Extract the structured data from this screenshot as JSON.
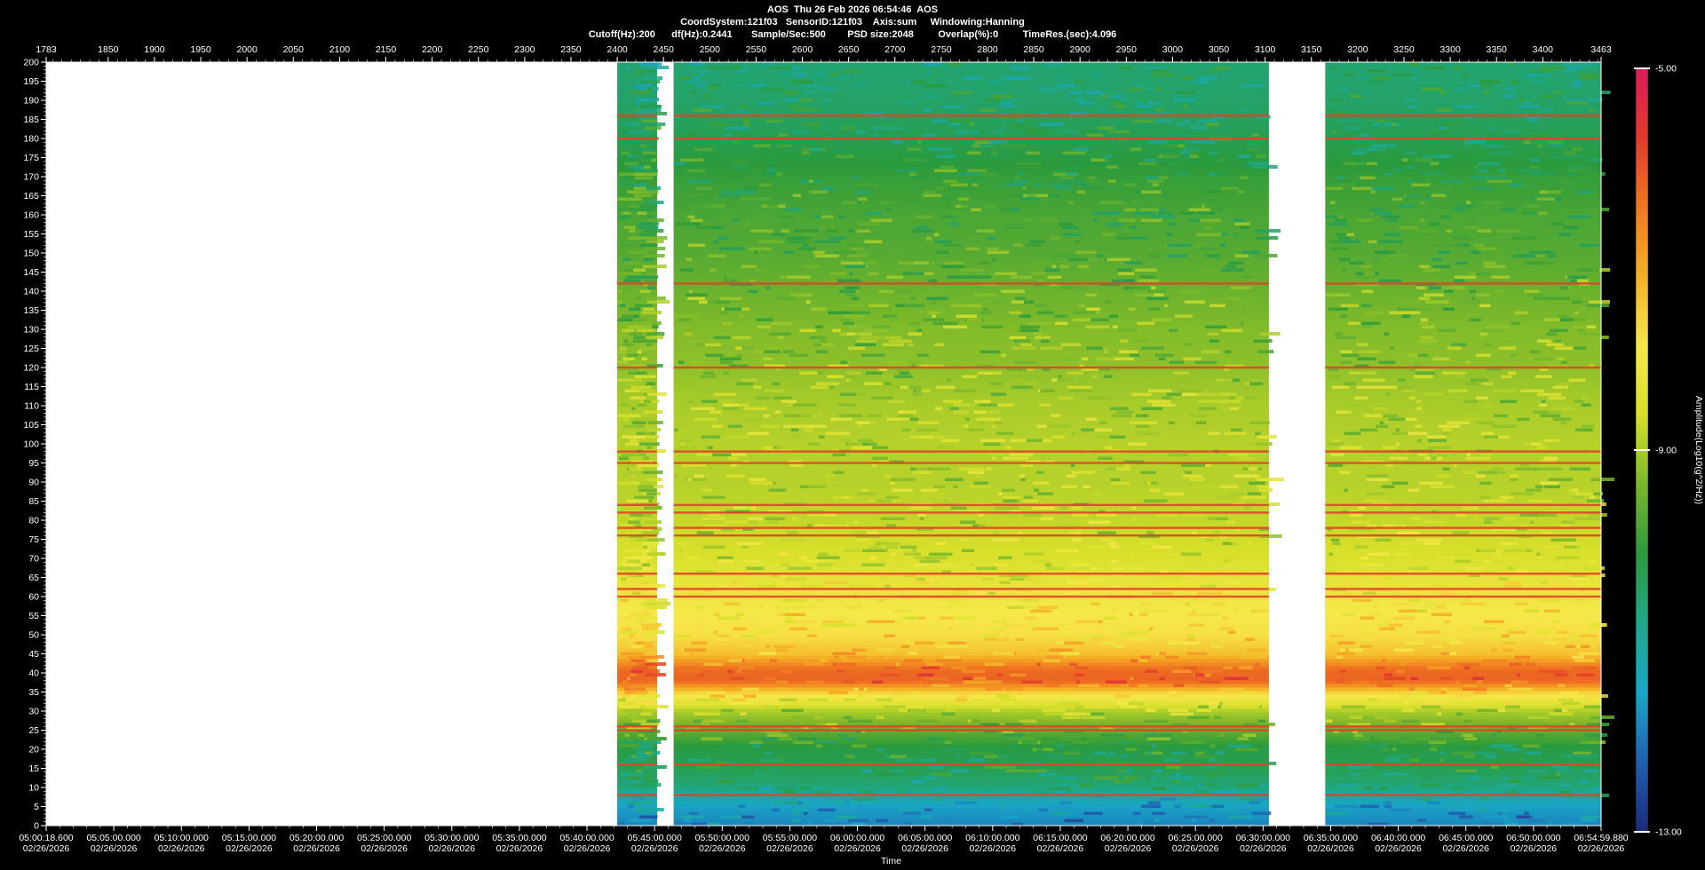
{
  "header": {
    "line1": "AOS  Thu 26 Feb 2026 06:54:46  AOS",
    "line2": "CoordSystem:121f03   SensorID:121f03    Axis:sum     Windowing:Hanning",
    "line3": "Cutoff(Hz):200      df(Hz):0.2441       Sample/Sec:500        PSD size:2048         Overlap(%):0         TimeRes.(sec):4.096"
  },
  "chart_data": {
    "type": "heatmap",
    "title": "AOS  Thu 26 Feb 2026 06:54:46  AOS",
    "xlabel": "Time",
    "ylabel": "",
    "colorbar_label": "Amplitude(Log10(g^2/Hz))",
    "colorbar_ticks": [
      "-5.00",
      "-9.00",
      "-13.00"
    ],
    "colorbar_range": [
      -13,
      -5
    ],
    "colormap": [
      "#1b2a7a",
      "#1f5fb0",
      "#19a6c8",
      "#1fa88a",
      "#2a9a3c",
      "#7ab82a",
      "#d8e02a",
      "#f6e84a",
      "#f5b025",
      "#f07820",
      "#e23a2a",
      "#d81c5a"
    ],
    "ylim": [
      0,
      200
    ],
    "y_ticks": [
      0,
      5,
      10,
      15,
      20,
      25,
      30,
      35,
      40,
      45,
      50,
      55,
      60,
      65,
      70,
      75,
      80,
      85,
      90,
      95,
      100,
      105,
      110,
      115,
      120,
      125,
      130,
      135,
      140,
      145,
      150,
      155,
      160,
      165,
      170,
      175,
      180,
      185,
      190,
      195,
      200
    ],
    "x_index_range": [
      1783,
      3463
    ],
    "x_index_ticks": [
      "1783",
      "1850",
      "1900",
      "1950",
      "2000",
      "2050",
      "2100",
      "2150",
      "2200",
      "2250",
      "2300",
      "2350",
      "2400",
      "2450",
      "2500",
      "2550",
      "2600",
      "2650",
      "2700",
      "2750",
      "2800",
      "2850",
      "2900",
      "2950",
      "3000",
      "3050",
      "3100",
      "3150",
      "3200",
      "3250",
      "3300",
      "3350",
      "3400",
      "3463"
    ],
    "time_ticks": [
      "05:00:18.600",
      "05:05:00.000",
      "05:10:00.000",
      "05:15:00.000",
      "05:20:00.000",
      "05:25:00.000",
      "05:30:00.000",
      "05:35:00.000",
      "05:40:00.000",
      "05:45:00.000",
      "05:50:00.000",
      "05:55:00.000",
      "06:00:00.000",
      "06:05:00.000",
      "06:10:00.000",
      "06:15:00.000",
      "06:20:00.000",
      "06:25:00.000",
      "06:30:00.000",
      "06:35:00.000",
      "06:40:00.000",
      "06:45:00.000",
      "06:50:00.000",
      "06:54:59.880"
    ],
    "date_label": "02/26/2026",
    "data_segments": [
      {
        "start": 2400,
        "end": 2443
      },
      {
        "start": 2461,
        "end": 3104
      },
      {
        "start": 3165,
        "end": 3463
      }
    ],
    "spectral_lines_hz": [
      186,
      180,
      142,
      120,
      98,
      95,
      84,
      82,
      78,
      76,
      66,
      62,
      60,
      26,
      25,
      16,
      8
    ],
    "band_profile": [
      {
        "hz": 0,
        "level": -11.9
      },
      {
        "hz": 5,
        "level": -11.6
      },
      {
        "hz": 10,
        "level": -10.7
      },
      {
        "hz": 15,
        "level": -10.3
      },
      {
        "hz": 20,
        "level": -10.2
      },
      {
        "hz": 25,
        "level": -9.6
      },
      {
        "hz": 30,
        "level": -9.0
      },
      {
        "hz": 35,
        "level": -7.6
      },
      {
        "hz": 38,
        "level": -6.2
      },
      {
        "hz": 41,
        "level": -6.3
      },
      {
        "hz": 45,
        "level": -7.4
      },
      {
        "hz": 50,
        "level": -7.8
      },
      {
        "hz": 55,
        "level": -7.9
      },
      {
        "hz": 60,
        "level": -8.1
      },
      {
        "hz": 70,
        "level": -8.6
      },
      {
        "hz": 80,
        "level": -8.8
      },
      {
        "hz": 90,
        "level": -8.9
      },
      {
        "hz": 100,
        "level": -8.9
      },
      {
        "hz": 110,
        "level": -9.0
      },
      {
        "hz": 120,
        "level": -9.2
      },
      {
        "hz": 130,
        "level": -9.3
      },
      {
        "hz": 140,
        "level": -9.5
      },
      {
        "hz": 150,
        "level": -9.7
      },
      {
        "hz": 160,
        "level": -9.8
      },
      {
        "hz": 170,
        "level": -10.0
      },
      {
        "hz": 180,
        "level": -10.3
      },
      {
        "hz": 190,
        "level": -10.5
      },
      {
        "hz": 200,
        "level": -10.6
      }
    ]
  }
}
